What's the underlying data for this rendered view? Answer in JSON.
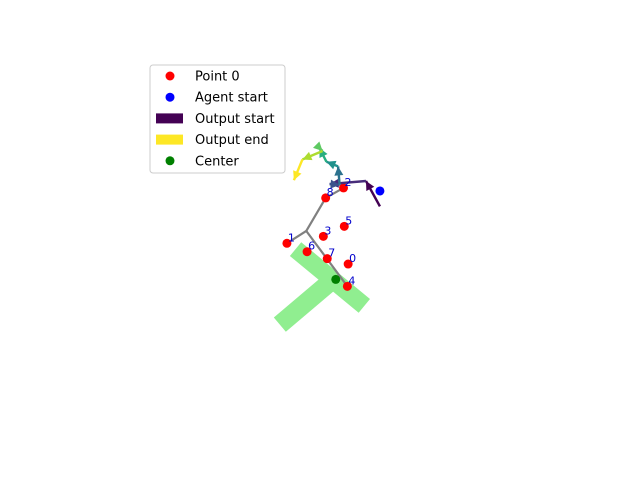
{
  "chart_data": {
    "type": "scatter",
    "title": "",
    "xlabel": "",
    "ylabel": "",
    "axes_visible": false,
    "xlim": [
      -10,
      22
    ],
    "ylim": [
      -14,
      10
    ],
    "grid": false,
    "legend_placement": "upper-left",
    "legend": [
      {
        "label": "Point 0",
        "marker": "circle",
        "color": "#ff0000"
      },
      {
        "label": "Agent start",
        "marker": "circle",
        "color": "#0000ff"
      },
      {
        "label": "Output start",
        "marker": "patch",
        "color": "#440154"
      },
      {
        "label": "Output end",
        "marker": "patch",
        "color": "#fde725"
      },
      {
        "label": "Center",
        "marker": "circle",
        "color": "#008000"
      }
    ],
    "points": [
      {
        "id": "0",
        "x": 7.3,
        "y": -3.4
      },
      {
        "id": "1",
        "x": 3.35,
        "y": -2.05
      },
      {
        "id": "2",
        "x": 7.0,
        "y": 1.55
      },
      {
        "id": "3",
        "x": 5.7,
        "y": -1.6
      },
      {
        "id": "4",
        "x": 7.25,
        "y": -4.85
      },
      {
        "id": "5",
        "x": 7.05,
        "y": -0.95
      },
      {
        "id": "6",
        "x": 4.65,
        "y": -2.6
      },
      {
        "id": "7",
        "x": 5.95,
        "y": -3.05
      },
      {
        "id": "8",
        "x": 5.85,
        "y": 0.9
      }
    ],
    "agent_start": {
      "x": 9.35,
      "y": 1.35
    },
    "center": {
      "x": 6.5,
      "y": -4.4
    },
    "skeleton_edges": [
      [
        [
          3.35,
          -2.05
        ],
        [
          4.6,
          -1.25
        ]
      ],
      [
        [
          4.6,
          -1.25
        ],
        [
          5.85,
          0.9
        ]
      ],
      [
        [
          5.85,
          0.9
        ],
        [
          7.0,
          1.55
        ]
      ],
      [
        [
          4.6,
          -1.25
        ],
        [
          7.25,
          -4.85
        ]
      ]
    ],
    "arrows": [
      {
        "from": [
          9.35,
          0.35
        ],
        "to": [
          8.45,
          2.0
        ],
        "color": "#440154"
      },
      {
        "from": [
          8.45,
          2.0
        ],
        "to": [
          6.1,
          1.8
        ],
        "color": "#472c7a"
      },
      {
        "from": [
          6.1,
          1.8
        ],
        "to": [
          6.75,
          1.75
        ],
        "color": "#3b528b"
      },
      {
        "from": [
          6.75,
          1.75
        ],
        "to": [
          6.65,
          2.95
        ],
        "color": "#2c728e"
      },
      {
        "from": [
          6.65,
          2.95
        ],
        "to": [
          5.9,
          3.25
        ],
        "color": "#21918c"
      },
      {
        "from": [
          5.9,
          3.25
        ],
        "to": [
          5.45,
          4.15
        ],
        "color": "#28ae80"
      },
      {
        "from": [
          5.45,
          4.15
        ],
        "to": [
          5.65,
          3.95
        ],
        "color": "#5ec962"
      },
      {
        "from": [
          5.65,
          3.95
        ],
        "to": [
          4.35,
          3.4
        ],
        "color": "#addc30"
      },
      {
        "from": [
          4.35,
          3.4
        ],
        "to": [
          3.8,
          2.05
        ],
        "color": "#fde725"
      }
    ],
    "region": {
      "color": "#90ee90",
      "bars": [
        {
          "from": [
            4.35,
            -2.8
          ],
          "to": [
            7.9,
            -5.75
          ],
          "width": 1.15
        },
        {
          "from": [
            6.1,
            -4.6
          ],
          "to": [
            3.35,
            -6.95
          ],
          "width": 1.2
        }
      ]
    }
  }
}
